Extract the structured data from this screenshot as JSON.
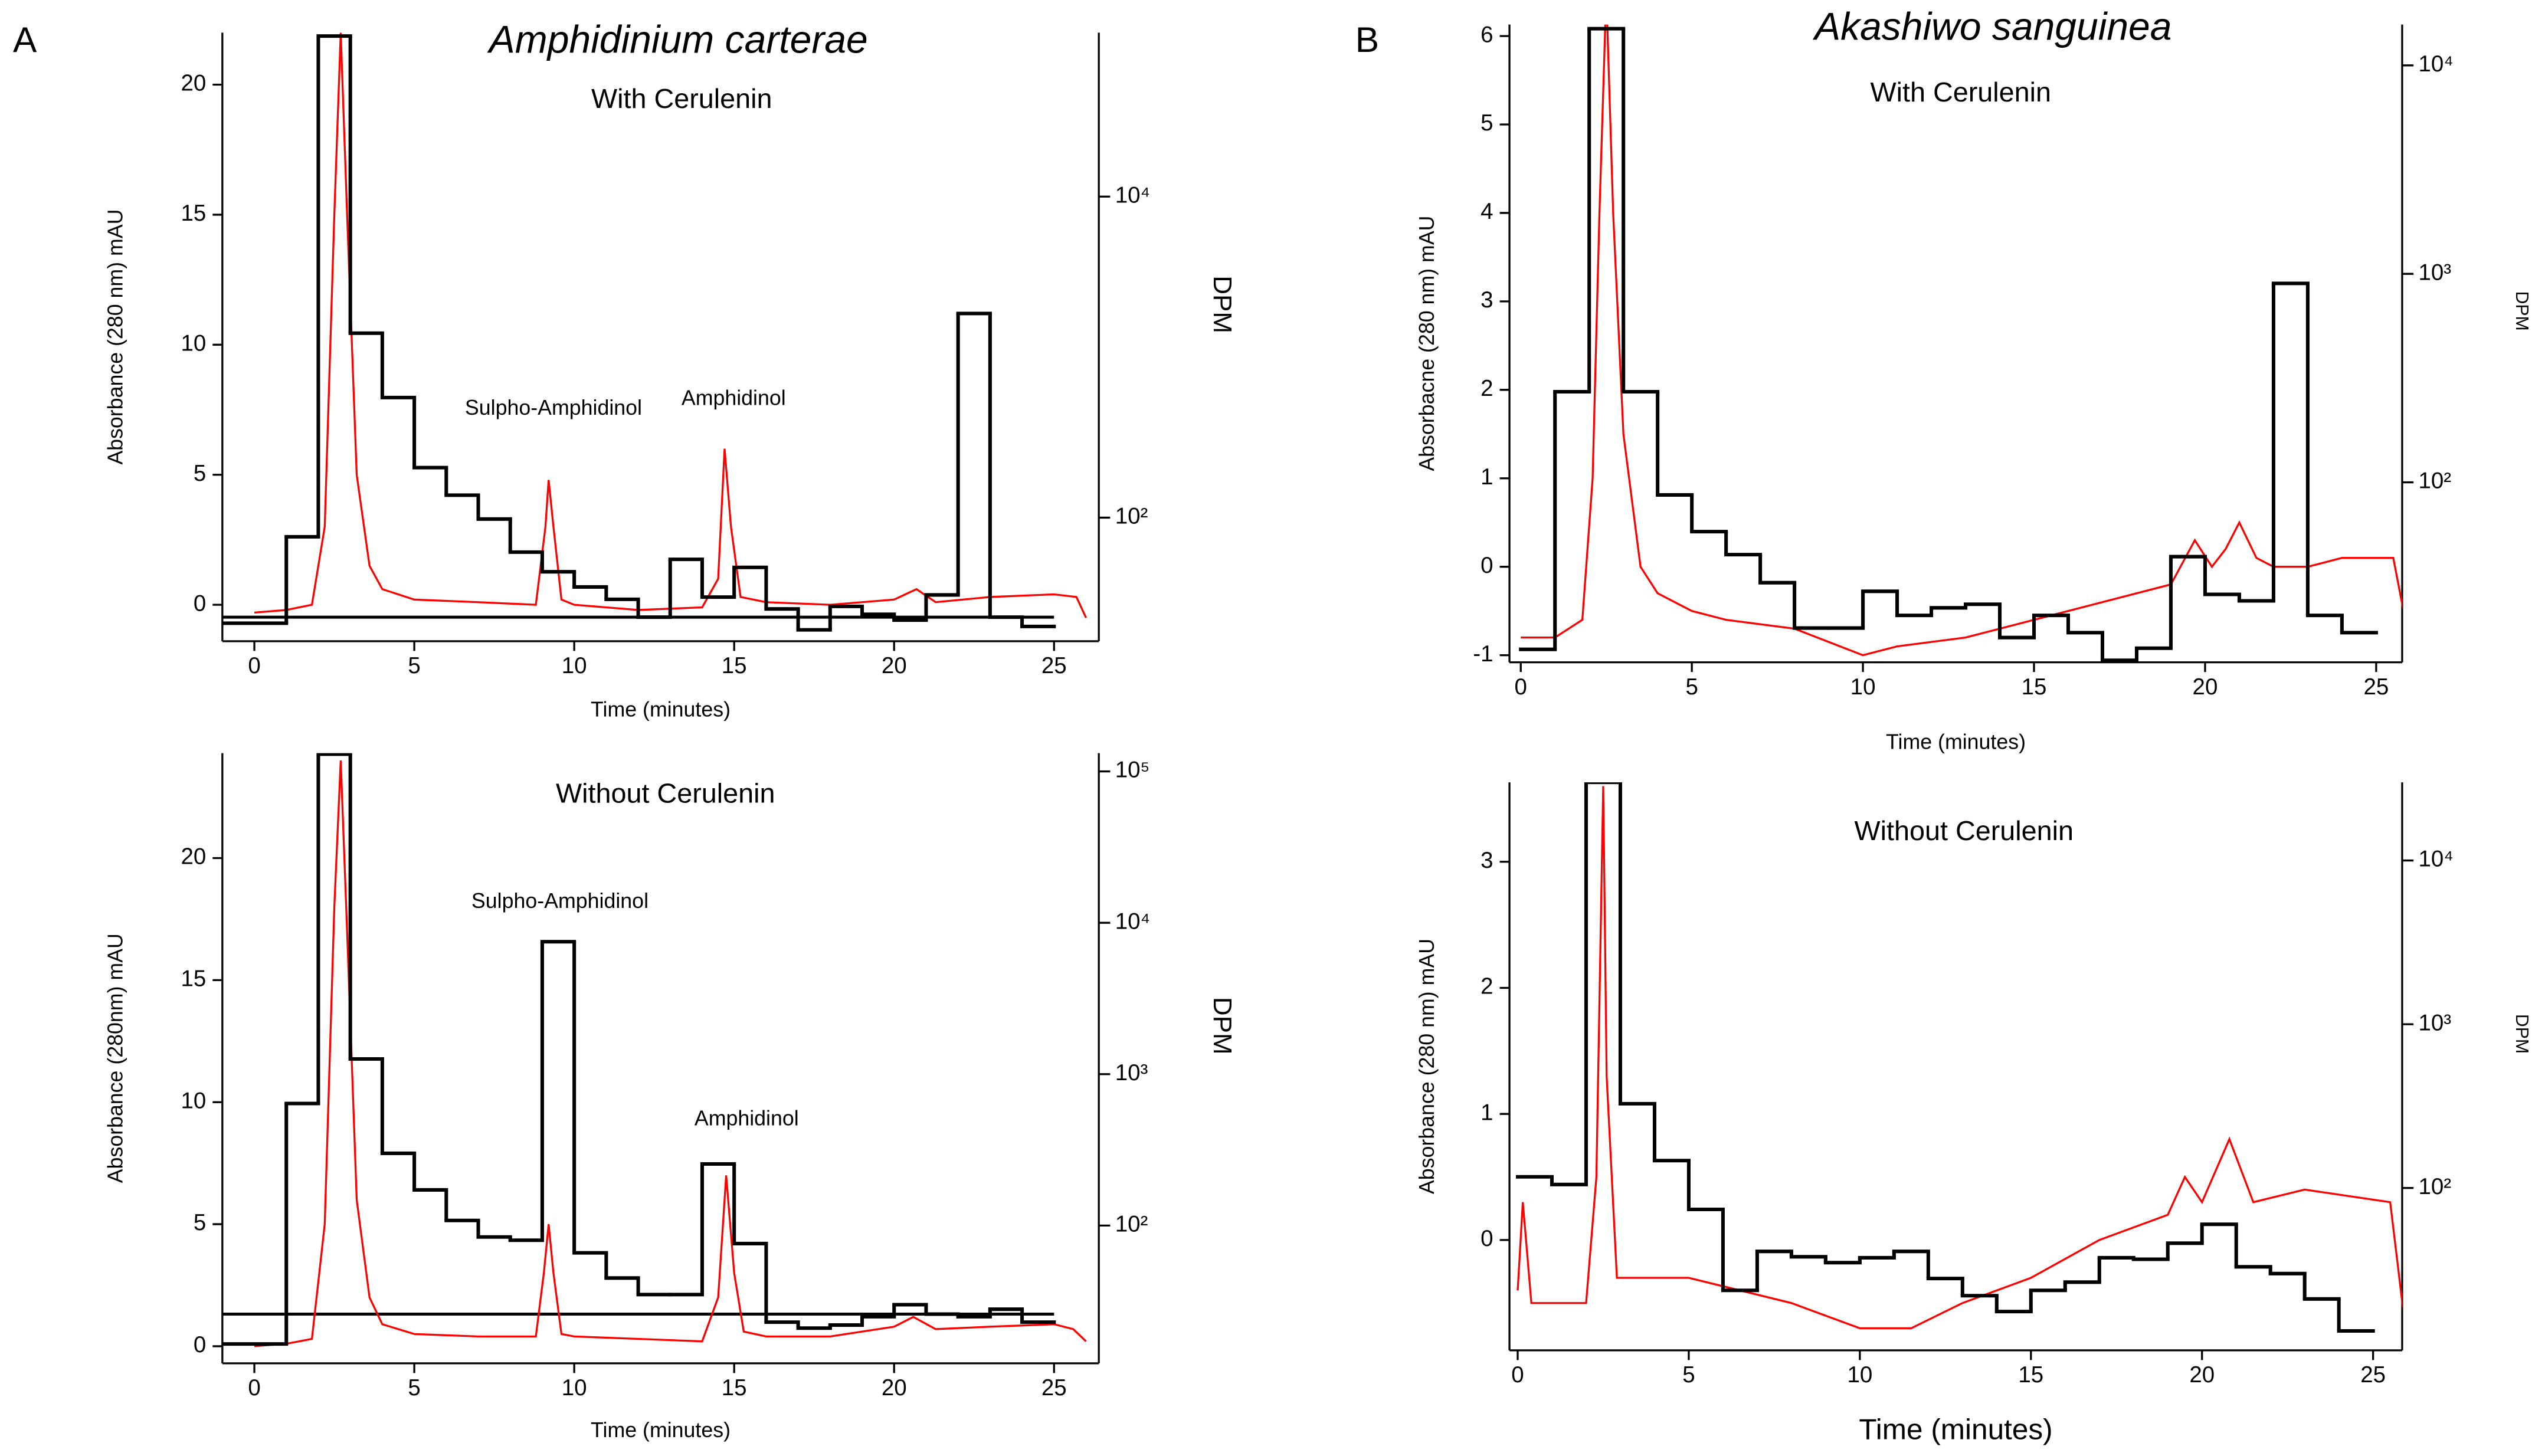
{
  "panels": [
    {
      "label": "A",
      "title": "Amphidinium carterae"
    },
    {
      "label": "B",
      "title": "Akashiwo sanguinea"
    }
  ],
  "chart_data": [
    {
      "type": "line",
      "subtitle": "With Cerulenin",
      "xlabel": "Time (minutes)",
      "ylabel": "Absorbance (280 nm) mAU",
      "y2label": "DPM",
      "xlim": [
        -1,
        26.4
      ],
      "xticks": [
        0,
        5,
        10,
        15,
        20,
        25
      ],
      "ylim": [
        -1.4,
        22
      ],
      "yticks": [
        0,
        5,
        10,
        15,
        20
      ],
      "y2log": true,
      "y2lim": [
        17,
        105000
      ],
      "y2ticks": [
        {
          "value": 100,
          "label": "10²"
        },
        {
          "value": 10000,
          "label": "10⁴"
        }
      ],
      "annotations": [
        "Sulpho-Amphidinol",
        "Amphidinol"
      ],
      "hline": {
        "value": 24,
        "x": [
          -1,
          25
        ]
      },
      "series": [
        {
          "color": "#ff0000",
          "x": [
            0,
            1,
            1.8,
            2.2,
            2.5,
            2.7,
            2.9,
            3.2,
            3.6,
            4,
            5,
            7,
            8.8,
            9.1,
            9.2,
            9.35,
            9.6,
            10,
            12,
            14,
            14.5,
            14.7,
            14.9,
            15.2,
            16,
            18,
            20,
            20.7,
            21.3,
            23,
            25,
            25.7,
            26
          ],
          "values": [
            -0.3,
            -0.2,
            0,
            3,
            15,
            22,
            15,
            5,
            1.5,
            0.6,
            0.2,
            0.1,
            0,
            3,
            4.8,
            3,
            0.2,
            0,
            -0.2,
            -0.1,
            1,
            6,
            3,
            0.3,
            0.1,
            0,
            0.2,
            0.6,
            0.1,
            0.3,
            0.4,
            0.3,
            -0.5
          ]
        },
        {
          "type": "step",
          "color": "#000000",
          "axis": "y2",
          "bins": [
            -1,
            1,
            2,
            3,
            4,
            5,
            6,
            7,
            8,
            9,
            10,
            11,
            12,
            13,
            14,
            15,
            16,
            17,
            18,
            19,
            20,
            21,
            22,
            23,
            24,
            25
          ],
          "values": [
            22,
            76,
            100000,
            1410,
            560,
            205,
            138,
            98,
            61,
            46,
            37,
            31,
            24,
            55,
            32,
            49,
            27,
            20,
            28,
            25,
            23,
            33,
            1870,
            24,
            21
          ]
        }
      ]
    },
    {
      "type": "line",
      "subtitle": "Without Cerulenin",
      "xlabel": "Time (minutes)",
      "ylabel": "Absorbance (280nm) mAU",
      "y2label": "DPM",
      "xlim": [
        -1,
        26.4
      ],
      "xticks": [
        0,
        5,
        10,
        15,
        20,
        25
      ],
      "ylim": [
        -0.7,
        24.3
      ],
      "yticks": [
        0,
        5,
        10,
        15,
        20
      ],
      "y2log": true,
      "y2lim": [
        12.3,
        132000
      ],
      "y2ticks": [
        {
          "value": 100,
          "label": "10²"
        },
        {
          "value": 1000,
          "label": "10³"
        },
        {
          "value": 10000,
          "label": "10⁴"
        },
        {
          "value": 100000,
          "label": "10⁵"
        }
      ],
      "annotations": [
        "Sulpho-Amphidinol",
        "Amphidinol"
      ],
      "hline": {
        "value": 26,
        "x": [
          -1,
          25
        ]
      },
      "series": [
        {
          "color": "#ff0000",
          "x": [
            0,
            1,
            1.8,
            2.2,
            2.5,
            2.7,
            2.9,
            3.2,
            3.6,
            4,
            5,
            7,
            8.8,
            9.05,
            9.2,
            9.35,
            9.6,
            10,
            12,
            14,
            14.5,
            14.75,
            15,
            15.3,
            16,
            18,
            20,
            20.6,
            21.3,
            23,
            25,
            25.6,
            26
          ],
          "values": [
            0,
            0.1,
            0.3,
            5,
            18,
            24,
            17,
            6,
            2,
            0.9,
            0.5,
            0.4,
            0.4,
            3,
            5,
            3,
            0.5,
            0.4,
            0.3,
            0.2,
            2,
            7,
            3,
            0.6,
            0.4,
            0.4,
            0.8,
            1.2,
            0.7,
            0.8,
            0.9,
            0.7,
            0.2
          ]
        },
        {
          "type": "step",
          "color": "#000000",
          "axis": "y2",
          "bins": [
            -1,
            1,
            2,
            3,
            4,
            5,
            6,
            7,
            8,
            9,
            10,
            11,
            12,
            13,
            14,
            15,
            16,
            17,
            18,
            19,
            20,
            21,
            22,
            23,
            24,
            25
          ],
          "values": [
            16.5,
            640,
            130000,
            1260,
            300,
            172,
            108,
            84,
            80,
            7500,
            66,
            45,
            35,
            35,
            255,
            76,
            23,
            21,
            22,
            25,
            30,
            26,
            25,
            28,
            23
          ]
        }
      ]
    },
    {
      "type": "line",
      "subtitle": "With Cerulenin",
      "xlabel": "Time (minutes)",
      "ylabel": "Absorbacne (280 nm) mAU",
      "y2label": "DPM",
      "xlim": [
        -0.33,
        25.76
      ],
      "xticks": [
        0,
        5,
        10,
        15,
        20,
        25
      ],
      "ylim": [
        -1.08,
        6.13
      ],
      "yticks": [
        -1,
        0,
        1,
        2,
        3,
        4,
        5,
        6
      ],
      "y2log": true,
      "y2lim": [
        13.7,
        15700
      ],
      "y2ticks": [
        {
          "value": 100,
          "label": "10²"
        },
        {
          "value": 1000,
          "label": "10³"
        },
        {
          "value": 10000,
          "label": "10⁴"
        }
      ],
      "series": [
        {
          "color": "#ff0000",
          "x": [
            0,
            1,
            1.8,
            2.1,
            2.3,
            2.5,
            2.7,
            3,
            3.5,
            4,
            5,
            6,
            8,
            10,
            11,
            13,
            15,
            16,
            17,
            19,
            19.7,
            20.2,
            20.6,
            21,
            21.5,
            22,
            23,
            24,
            25.5,
            25.8,
            26
          ],
          "values": [
            -0.8,
            -0.8,
            -0.6,
            1,
            4,
            6.5,
            4,
            1.5,
            0,
            -0.3,
            -0.5,
            -0.6,
            -0.7,
            -1,
            -0.9,
            -0.8,
            -0.6,
            -0.5,
            -0.4,
            -0.2,
            0.3,
            0,
            0.2,
            0.5,
            0.1,
            0,
            0,
            0.1,
            0.1,
            -0.5,
            -1
          ]
        },
        {
          "type": "step",
          "color": "#000000",
          "axis": "y2",
          "bins": [
            0,
            1,
            2,
            3,
            4,
            5,
            6,
            7,
            8,
            9,
            10,
            11,
            12,
            13,
            14,
            15,
            16,
            17,
            18,
            19,
            20,
            21,
            22,
            23,
            24,
            25
          ],
          "values": [
            15.8,
            272,
            15000,
            272,
            87,
            58,
            45,
            33,
            20,
            20,
            30,
            23,
            25,
            26,
            18,
            23,
            19,
            14,
            16,
            44,
            29,
            27,
            900,
            23,
            19
          ]
        }
      ]
    },
    {
      "type": "line",
      "subtitle": "Without Cerulenin",
      "xlabel": "Time (minutes)",
      "ylabel": "Absorbance (280 nm) mAU",
      "y2label": "DPM",
      "xlim": [
        -0.24,
        25.85
      ],
      "xticks": [
        0,
        5,
        10,
        15,
        20,
        25
      ],
      "ylim": [
        -0.875,
        3.63
      ],
      "yticks": [
        0,
        1,
        2,
        3
      ],
      "y2log": true,
      "y2lim": [
        10.2,
        30000
      ],
      "y2ticks": [
        {
          "value": 100,
          "label": "10²"
        },
        {
          "value": 1000,
          "label": "10³"
        },
        {
          "value": 10000,
          "label": "10⁴"
        }
      ],
      "series": [
        {
          "color": "#ff0000",
          "x": [
            0,
            0.15,
            0.4,
            2,
            2.3,
            2.5,
            2.6,
            2.9,
            5,
            8,
            10,
            11.5,
            13,
            15,
            17,
            19,
            19.5,
            20,
            20.8,
            21.5,
            23,
            25.5,
            25.9
          ],
          "values": [
            -0.4,
            0.3,
            -0.5,
            -0.5,
            0.5,
            3.6,
            1.3,
            -0.3,
            -0.3,
            -0.5,
            -0.7,
            -0.7,
            -0.5,
            -0.3,
            0,
            0.2,
            0.5,
            0.3,
            0.8,
            0.3,
            0.4,
            0.3,
            -0.6
          ]
        },
        {
          "type": "step",
          "color": "#000000",
          "axis": "y2",
          "bins": [
            0,
            1,
            2,
            3,
            4,
            5,
            6,
            7,
            8,
            9,
            10,
            11,
            12,
            13,
            14,
            15,
            16,
            17,
            18,
            19,
            20,
            21,
            22,
            23,
            24,
            25
          ],
          "values": [
            117,
            105,
            30000,
            327,
            147,
            74,
            23.7,
            41,
            38,
            35,
            37.5,
            41,
            28,
            22,
            17.6,
            23.7,
            26.6,
            37.5,
            36.7,
            46,
            60,
            33,
            30,
            21,
            13.4
          ]
        }
      ]
    }
  ]
}
